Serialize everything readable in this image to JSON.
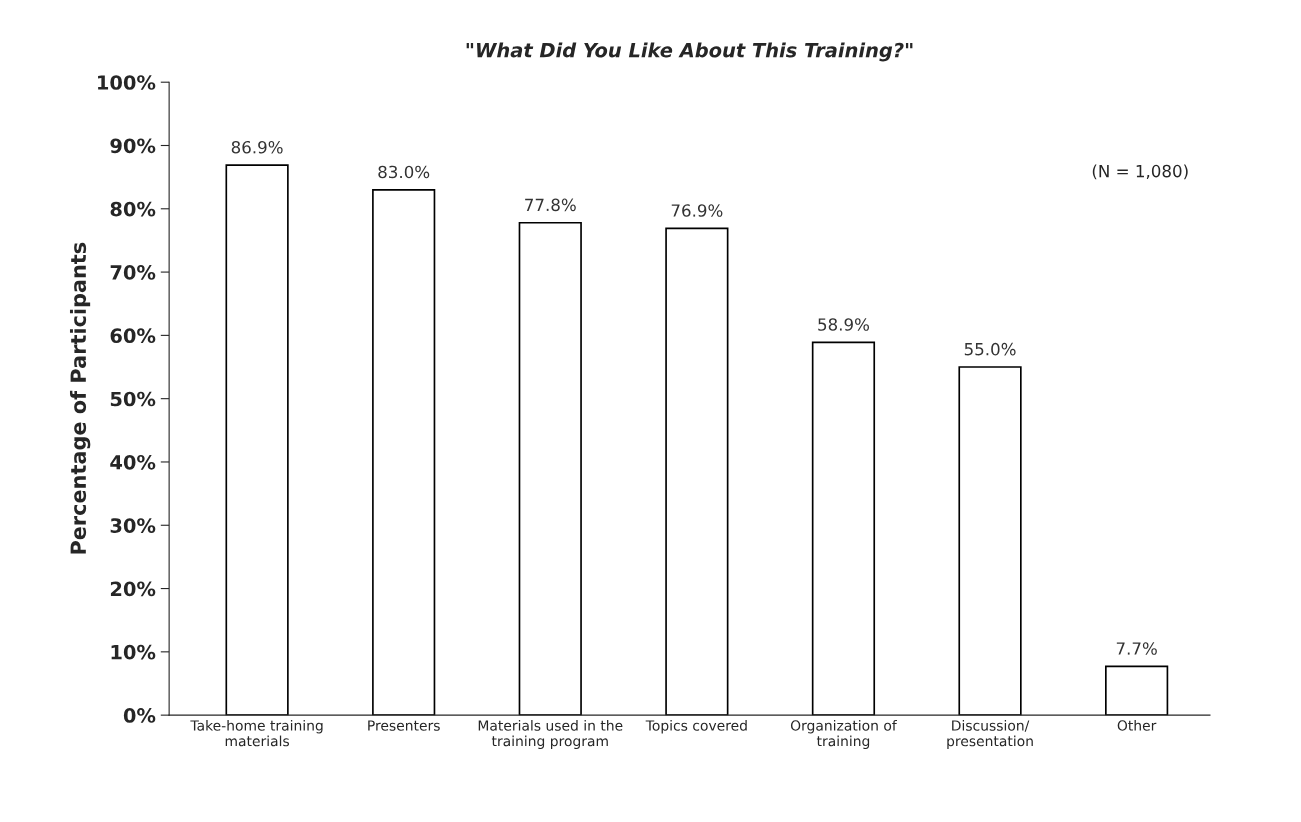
{
  "chart_data": {
    "type": "bar",
    "title": "\"What Did You Like About This Training?\"",
    "ylabel": "Percentage of Participants",
    "categories": [
      "Take-home training\nmaterials",
      "Presenters",
      "Materials used in the\ntraining program",
      "Topics covered",
      "Organization of\ntraining",
      "Discussion/\npresentation",
      "Other"
    ],
    "values": [
      86.9,
      83.0,
      77.8,
      76.9,
      58.9,
      55.0,
      7.7
    ],
    "value_labels": [
      "86.9%",
      "83.0%",
      "77.8%",
      "76.9%",
      "58.9%",
      "55.0%",
      "7.7%"
    ],
    "color": "#ffffff",
    "ylim": [
      0,
      100
    ],
    "yticks": [
      {
        "value": 0,
        "label": "0%"
      },
      {
        "value": 10,
        "label": "10%"
      },
      {
        "value": 20,
        "label": "20%"
      },
      {
        "value": 30,
        "label": "30%"
      },
      {
        "value": 40,
        "label": "40%"
      },
      {
        "value": 50,
        "label": "50%"
      },
      {
        "value": 60,
        "label": "60%"
      },
      {
        "value": 70,
        "label": "70%"
      },
      {
        "value": 80,
        "label": "80%"
      },
      {
        "value": 90,
        "label": "90%"
      },
      {
        "value": 100,
        "label": "100%"
      }
    ],
    "annotations": [
      "(N = 1,080)"
    ],
    "grid": false,
    "legend": false
  }
}
